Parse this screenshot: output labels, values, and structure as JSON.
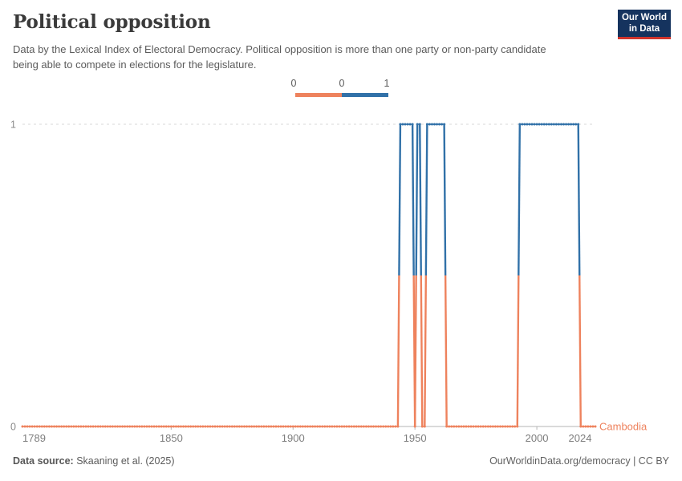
{
  "header": {
    "title": "Political opposition",
    "subtitle": "Data by the Lexical Index of Electoral Democracy. Political opposition is more than one party or non-party candidate being able to compete in elections for the legislature.",
    "logo": {
      "line1": "Our World",
      "line2": "in Data",
      "bg_color": "#15335e",
      "accent_color": "#d0342c"
    }
  },
  "legend": {
    "edge_labels": [
      "0",
      "0",
      "1"
    ],
    "bins": [
      {
        "value": 0,
        "color": "#ee825d"
      },
      {
        "value": 1,
        "color": "#3171a8"
      }
    ]
  },
  "chart_data": {
    "type": "line",
    "title": "Political opposition",
    "entity": "Cambodia",
    "xlabel": "",
    "ylabel": "",
    "xlim": [
      1789,
      2024
    ],
    "ylim": [
      0,
      1
    ],
    "grid": "dashed line at y=1, solid axis at y=0",
    "x_ticks": [
      1789,
      1850,
      1900,
      1950,
      2000,
      2024
    ],
    "x_tick_labels": [
      "1789",
      "1850",
      "1900",
      "1950",
      "2000",
      "2024"
    ],
    "y_ticks": [
      0,
      1
    ],
    "y_tick_labels": [
      "0",
      "1"
    ],
    "value_colors": {
      "0": "#ee825d",
      "1": "#3171a8"
    },
    "series": [
      {
        "name": "Cambodia",
        "label_color": "#ee825d",
        "runs": [
          {
            "from": 1789,
            "to": 1943,
            "value": 0
          },
          {
            "from": 1944,
            "to": 1949,
            "value": 1
          },
          {
            "from": 1950,
            "to": 1950,
            "value": 0
          },
          {
            "from": 1951,
            "to": 1952,
            "value": 1
          },
          {
            "from": 1953,
            "to": 1954,
            "value": 0
          },
          {
            "from": 1955,
            "to": 1962,
            "value": 1
          },
          {
            "from": 1963,
            "to": 1992,
            "value": 0
          },
          {
            "from": 1993,
            "to": 2017,
            "value": 1
          },
          {
            "from": 2018,
            "to": 2024,
            "value": 0
          }
        ]
      }
    ]
  },
  "footer": {
    "source_label": "Data source:",
    "source_value": "Skaaning et al. (2025)",
    "attribution": "OurWorldinData.org/democracy | CC BY"
  }
}
